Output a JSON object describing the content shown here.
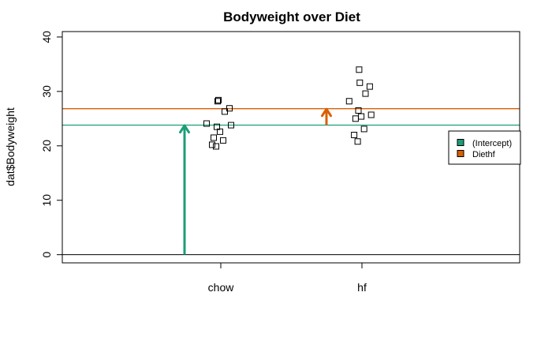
{
  "chart_data": {
    "type": "scatter",
    "title": "Bodyweight over Diet",
    "xlabel": "",
    "ylabel": "dat$Bodyweight",
    "categories": [
      "chow",
      "hf"
    ],
    "yticks": [
      "0",
      "10",
      "20",
      "30",
      "40"
    ],
    "ylim": [
      -1.5,
      41
    ],
    "points": {
      "chow": [
        28.2,
        28.4,
        26.9,
        26.3,
        24.1,
        23.5,
        23.8,
        22.6,
        21.5,
        21.0,
        20.2,
        19.9
      ],
      "hf": [
        34.0,
        31.6,
        30.9,
        29.6,
        28.2,
        26.5,
        25.7,
        25.4,
        25.0,
        23.1,
        22.0,
        20.8
      ]
    },
    "hlines": [
      {
        "name": "(Intercept)",
        "value": 23.81,
        "color": "#1b9e77"
      },
      {
        "name": "Diethf",
        "value": 26.83,
        "color": "#d95f02"
      }
    ],
    "arrows": [
      {
        "name": "(Intercept)",
        "from": 0,
        "to": 23.81,
        "color": "#1b9e77"
      },
      {
        "name": "Diethf",
        "from": 23.81,
        "to": 26.83,
        "color": "#d95f02"
      }
    ],
    "legend": {
      "position": "right",
      "entries": [
        {
          "label": "(Intercept)",
          "color": "#1b9e77"
        },
        {
          "label": "Diethf",
          "color": "#d95f02"
        }
      ]
    },
    "grid": false
  }
}
